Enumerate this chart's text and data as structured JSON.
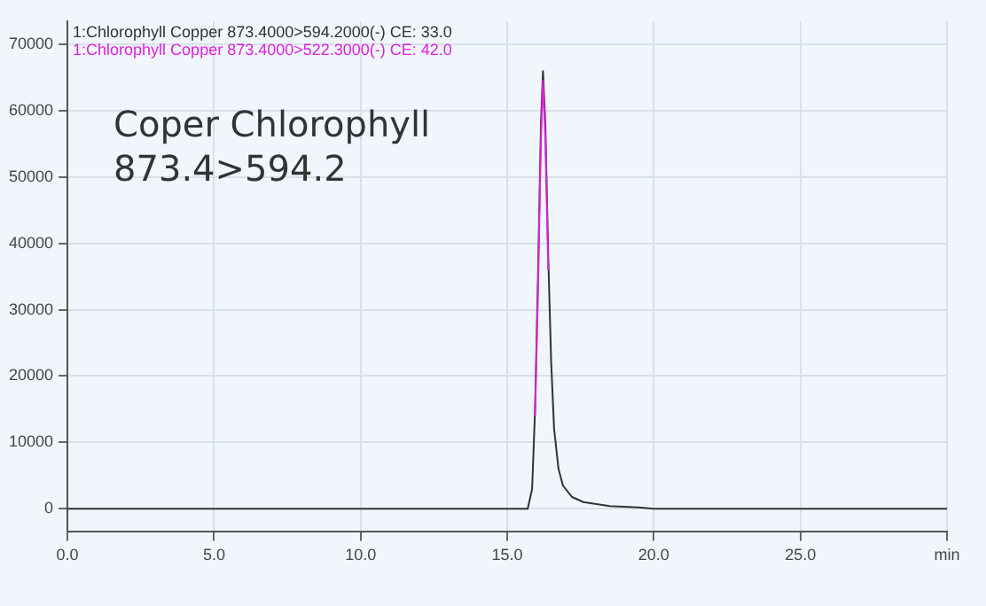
{
  "chart_data": {
    "type": "line",
    "annotations": [
      "Coper Chlorophyll\n873.4>594.2"
    ],
    "x": [
      0,
      5,
      10,
      14,
      15,
      15.7,
      15.85,
      15.95,
      16.05,
      16.15,
      16.22,
      16.3,
      16.4,
      16.5,
      16.6,
      16.75,
      16.9,
      17.2,
      17.6,
      18.5,
      19.5,
      20,
      25,
      30
    ],
    "series": [
      {
        "name": "1:Chlorophyll Copper 873.4000>594.2000(-) CE: 33.0",
        "color": "#333333",
        "values": [
          0,
          0,
          0,
          0,
          0,
          0,
          3000,
          15000,
          35000,
          58000,
          66000,
          58000,
          38000,
          22000,
          12000,
          6000,
          3500,
          1800,
          1000,
          400,
          200,
          0,
          0,
          0
        ]
      },
      {
        "name": "1:Chlorophyll Copper 873.4000>522.3000(-) CE: 42.0",
        "color": "#e020e0",
        "values": [
          null,
          null,
          null,
          null,
          null,
          null,
          null,
          14000,
          33000,
          55500,
          64500,
          56000,
          36000,
          null,
          null,
          null,
          null,
          null,
          null,
          null,
          null,
          null,
          null,
          null
        ]
      }
    ],
    "xlim": [
      0,
      30
    ],
    "xticks": [
      {
        "value": 0,
        "label": "0.0"
      },
      {
        "value": 5,
        "label": "5.0"
      },
      {
        "value": 10,
        "label": "10.0"
      },
      {
        "value": 15,
        "label": "15.0"
      },
      {
        "value": 20,
        "label": "20.0"
      },
      {
        "value": 25,
        "label": "25.0"
      },
      {
        "value": 30,
        "label": "min"
      }
    ],
    "ylim": [
      -3500,
      73500
    ],
    "yticks": [
      0,
      10000,
      20000,
      30000,
      40000,
      50000,
      60000,
      70000
    ],
    "grid": true,
    "legend": "top left",
    "marker": "none",
    "line_style": "solid"
  }
}
